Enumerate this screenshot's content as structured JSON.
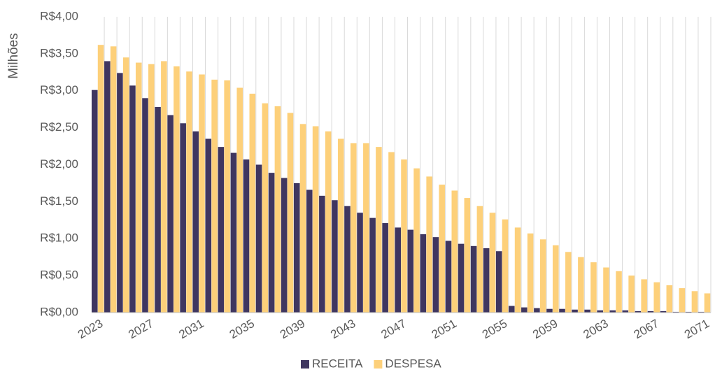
{
  "chart_data": {
    "type": "bar",
    "y_axis_label": "Milhões",
    "categories": [
      "2023",
      null,
      null,
      null,
      "2027",
      null,
      null,
      null,
      "2031",
      null,
      null,
      null,
      "2035",
      null,
      null,
      null,
      "2039",
      null,
      null,
      null,
      "2043",
      null,
      null,
      null,
      "2047",
      null,
      null,
      null,
      "2051",
      null,
      null,
      null,
      "2055",
      null,
      null,
      null,
      "2059",
      null,
      null,
      null,
      "2063",
      null,
      null,
      null,
      "2067",
      null,
      null,
      null,
      "2071"
    ],
    "series": [
      {
        "name": "RECEITA",
        "color": "#3f3660",
        "values": [
          3.01,
          3.4,
          3.24,
          3.07,
          2.9,
          2.78,
          2.67,
          2.56,
          2.45,
          2.35,
          2.24,
          2.16,
          2.07,
          2.0,
          1.89,
          1.82,
          1.75,
          1.66,
          1.58,
          1.52,
          1.44,
          1.35,
          1.28,
          1.21,
          1.15,
          1.12,
          1.06,
          1.02,
          0.97,
          0.93,
          0.9,
          0.87,
          0.83,
          0.09,
          0.07,
          0.06,
          0.05,
          0.05,
          0.04,
          0.04,
          0.03,
          0.03,
          0.03,
          0.02,
          0.02,
          0.02,
          0.01,
          0.01,
          0.01
        ]
      },
      {
        "name": "DESPESA",
        "color": "#fdd07a",
        "values": [
          3.62,
          3.6,
          3.45,
          3.38,
          3.36,
          3.4,
          3.33,
          3.26,
          3.22,
          3.15,
          3.14,
          3.04,
          2.96,
          2.83,
          2.79,
          2.7,
          2.55,
          2.52,
          2.45,
          2.35,
          2.29,
          2.29,
          2.24,
          2.17,
          2.07,
          1.95,
          1.84,
          1.73,
          1.65,
          1.55,
          1.44,
          1.35,
          1.26,
          1.15,
          1.07,
          0.99,
          0.91,
          0.82,
          0.75,
          0.68,
          0.61,
          0.56,
          0.5,
          0.45,
          0.41,
          0.37,
          0.33,
          0.29,
          0.26
        ]
      }
    ],
    "ylim": [
      0,
      4
    ],
    "yticks": [
      {
        "value": 0,
        "label": "R$0,00"
      },
      {
        "value": 0.5,
        "label": "R$0,50"
      },
      {
        "value": 1,
        "label": "R$1,00"
      },
      {
        "value": 1.5,
        "label": "R$1,50"
      },
      {
        "value": 2,
        "label": "R$2,00"
      },
      {
        "value": 2.5,
        "label": "R$2,50"
      },
      {
        "value": 3,
        "label": "R$3,00"
      },
      {
        "value": 3.5,
        "label": "R$3,50"
      },
      {
        "value": 4,
        "label": "R$4,00"
      }
    ],
    "grid": true,
    "legend": "bottom"
  }
}
